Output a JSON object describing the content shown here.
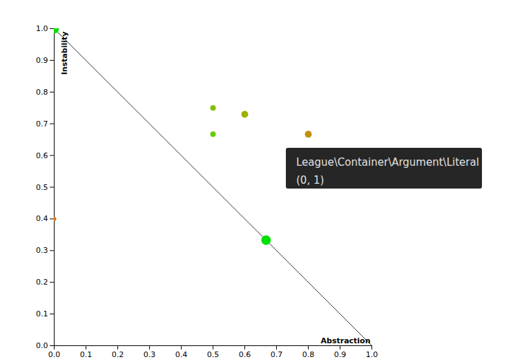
{
  "chart_data": {
    "type": "scatter",
    "x_label": "Abstraction",
    "y_label": "Instability",
    "x": [
      0,
      0.667,
      0.5,
      0.6,
      0.5,
      0.8,
      0
    ],
    "values": [
      1,
      0.333,
      0.75,
      0.73,
      0.667,
      0.667,
      0.4
    ],
    "sizes": [
      7,
      7,
      4,
      5,
      4,
      5,
      3
    ],
    "colors": [
      "#00e000",
      "#00e000",
      "#7fbf00",
      "#a0b000",
      "#66cc00",
      "#c09010",
      "#e07010"
    ],
    "reference_line": {
      "x": [
        0,
        1
      ],
      "y": [
        1,
        0
      ]
    },
    "xlim": [
      0,
      1
    ],
    "ylim": [
      0,
      1
    ],
    "xticks": [
      {
        "value": 0,
        "label": "0.0"
      },
      0.1,
      0.2,
      0.3,
      0.4,
      0.5,
      0.6,
      0.7,
      0.8,
      0.9,
      {
        "value": 1,
        "label": "1.0"
      }
    ],
    "yticks": [
      {
        "value": 0,
        "label": "0.0"
      },
      0.1,
      0.2,
      0.3,
      0.4,
      0.5,
      0.6,
      0.7,
      0.8,
      0.9,
      {
        "value": 1,
        "label": "1.0"
      }
    ],
    "grid": false,
    "annotation": [
      "League\\Container\\Argument\\Literal",
      "(0, 1)"
    ]
  }
}
